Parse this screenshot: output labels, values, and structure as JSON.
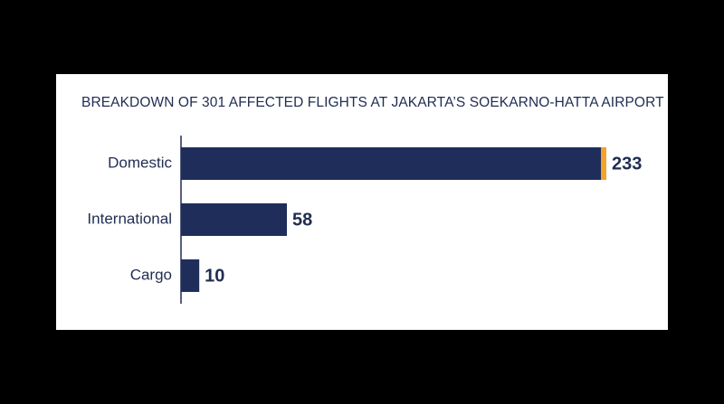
{
  "chart_data": {
    "type": "bar",
    "orientation": "horizontal",
    "title": "BREAKDOWN OF 301 AFFECTED FLIGHTS AT JAKARTA’S SOEKARNO-HATTA AIRPORT",
    "categories": [
      "Domestic",
      "International",
      "Cargo"
    ],
    "values": [
      233,
      58,
      10
    ],
    "color": "#1f2d5a",
    "accent_color": "#f0a42c"
  }
}
